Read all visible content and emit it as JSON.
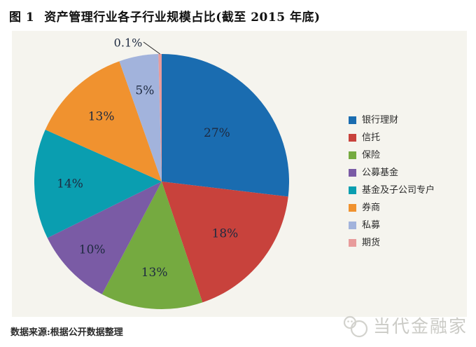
{
  "header": {
    "figure_label": "图 1",
    "title": "资产管理行业各子行业规模占比(截至 2015 年底)"
  },
  "chart_data": {
    "type": "pie",
    "title": "资产管理行业各子行业规模占比(截至 2015 年底)",
    "direction": "clockwise",
    "start_angle_deg": 0,
    "legend_position": "right",
    "plot_bg": "#f5f4ee",
    "data_label_color": "#1e2a40",
    "slices": [
      {
        "label": "银行理财",
        "value": 27,
        "display": "27%",
        "color": "#1a6cb0",
        "label_r": 0.58
      },
      {
        "label": "信托",
        "value": 18,
        "display": "18%",
        "color": "#c8423c",
        "label_r": 0.64
      },
      {
        "label": "保险",
        "value": 13,
        "display": "13%",
        "color": "#75aa40",
        "label_r": 0.71
      },
      {
        "label": "公募基金",
        "value": 10,
        "display": "10%",
        "color": "#7a5ba5",
        "label_r": 0.76
      },
      {
        "label": "基金及子公司专户",
        "value": 14,
        "display": "14%",
        "color": "#0a9eb0",
        "label_r": 0.72
      },
      {
        "label": "券商",
        "value": 13,
        "display": "13%",
        "color": "#f0922f",
        "label_r": 0.7
      },
      {
        "label": "私募",
        "value": 5,
        "display": "5%",
        "color": "#a2b3dc",
        "label_r": 0.73
      },
      {
        "label": "期货",
        "value": 0.1,
        "display": "0.1%",
        "color": "#e89b9b",
        "callout": true
      }
    ]
  },
  "footer": {
    "source_note": "数据来源:根据公开数据整理",
    "watermark": "当代金融家"
  }
}
